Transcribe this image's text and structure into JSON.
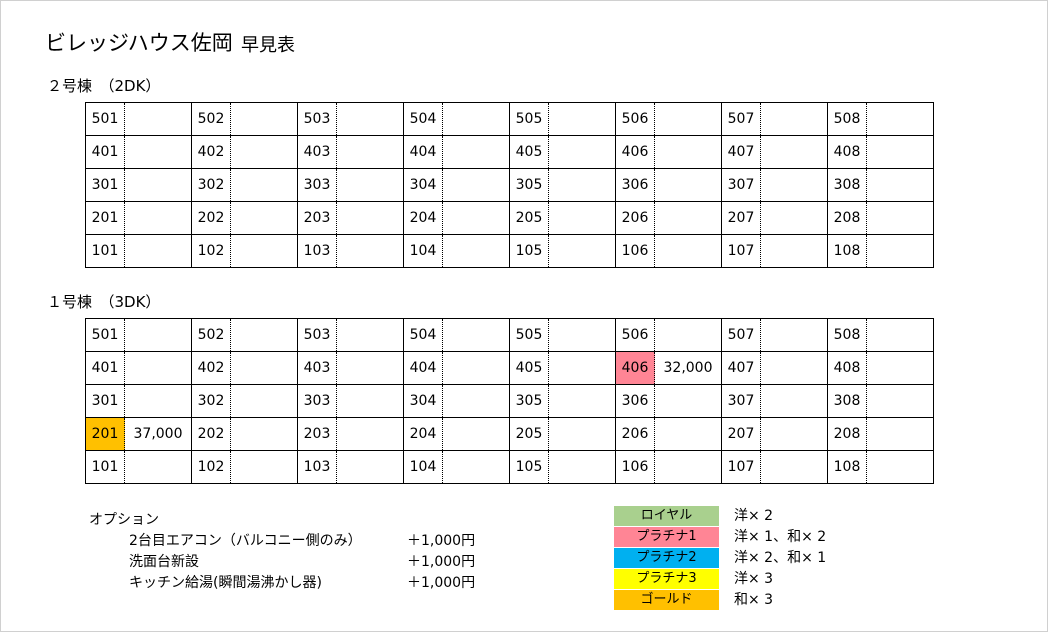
{
  "title": "ビレッジハウス佐岡",
  "subtitle": "早見表",
  "buildings": [
    {
      "label": "２号棟　（2DK）",
      "rows": [
        [
          {
            "no": "501"
          },
          {
            "no": "502"
          },
          {
            "no": "503"
          },
          {
            "no": "504"
          },
          {
            "no": "505"
          },
          {
            "no": "506"
          },
          {
            "no": "507"
          },
          {
            "no": "508"
          }
        ],
        [
          {
            "no": "401"
          },
          {
            "no": "402"
          },
          {
            "no": "403"
          },
          {
            "no": "404"
          },
          {
            "no": "405"
          },
          {
            "no": "406"
          },
          {
            "no": "407"
          },
          {
            "no": "408"
          }
        ],
        [
          {
            "no": "301"
          },
          {
            "no": "302"
          },
          {
            "no": "303"
          },
          {
            "no": "304"
          },
          {
            "no": "305"
          },
          {
            "no": "306"
          },
          {
            "no": "307"
          },
          {
            "no": "308"
          }
        ],
        [
          {
            "no": "201"
          },
          {
            "no": "202"
          },
          {
            "no": "203"
          },
          {
            "no": "204"
          },
          {
            "no": "205"
          },
          {
            "no": "206"
          },
          {
            "no": "207"
          },
          {
            "no": "208"
          }
        ],
        [
          {
            "no": "101"
          },
          {
            "no": "102"
          },
          {
            "no": "103"
          },
          {
            "no": "104"
          },
          {
            "no": "105"
          },
          {
            "no": "106"
          },
          {
            "no": "107"
          },
          {
            "no": "108"
          }
        ]
      ]
    },
    {
      "label": "１号棟　（3DK）",
      "rows": [
        [
          {
            "no": "501"
          },
          {
            "no": "502"
          },
          {
            "no": "503"
          },
          {
            "no": "504"
          },
          {
            "no": "505"
          },
          {
            "no": "506"
          },
          {
            "no": "507"
          },
          {
            "no": "508"
          }
        ],
        [
          {
            "no": "401"
          },
          {
            "no": "402"
          },
          {
            "no": "403"
          },
          {
            "no": "404"
          },
          {
            "no": "405"
          },
          {
            "no": "406",
            "price": "32,000",
            "grade": "プラチナ1"
          },
          {
            "no": "407"
          },
          {
            "no": "408"
          }
        ],
        [
          {
            "no": "301"
          },
          {
            "no": "302"
          },
          {
            "no": "303"
          },
          {
            "no": "304"
          },
          {
            "no": "305"
          },
          {
            "no": "306"
          },
          {
            "no": "307"
          },
          {
            "no": "308"
          }
        ],
        [
          {
            "no": "201",
            "price": "37,000",
            "grade": "ゴールド"
          },
          {
            "no": "202"
          },
          {
            "no": "203"
          },
          {
            "no": "204"
          },
          {
            "no": "205"
          },
          {
            "no": "206"
          },
          {
            "no": "207"
          },
          {
            "no": "208"
          }
        ],
        [
          {
            "no": "101"
          },
          {
            "no": "102"
          },
          {
            "no": "103"
          },
          {
            "no": "104"
          },
          {
            "no": "105"
          },
          {
            "no": "106"
          },
          {
            "no": "107"
          },
          {
            "no": "108"
          }
        ]
      ]
    }
  ],
  "options": {
    "heading": "オプション",
    "items": [
      {
        "name": "2台目エアコン（バルコニー側のみ）",
        "price": "＋1,000円"
      },
      {
        "name": "洗面台新設",
        "price": "＋1,000円"
      },
      {
        "name": "キッチン給湯(瞬間湯沸かし器)",
        "price": "＋1,000円"
      }
    ]
  },
  "legend": [
    {
      "label": "ロイヤル",
      "desc": "洋× 2",
      "color": "#a9d08e"
    },
    {
      "label": "プラチナ1",
      "desc": "洋× 1、和× 2",
      "color": "#ff8595"
    },
    {
      "label": "プラチナ2",
      "desc": "洋× 2、和× 1",
      "color": "#00b0f0"
    },
    {
      "label": "プラチナ3",
      "desc": "洋× 3",
      "color": "#ffff00"
    },
    {
      "label": "ゴールド",
      "desc": "和× 3",
      "color": "#ffc000"
    }
  ]
}
